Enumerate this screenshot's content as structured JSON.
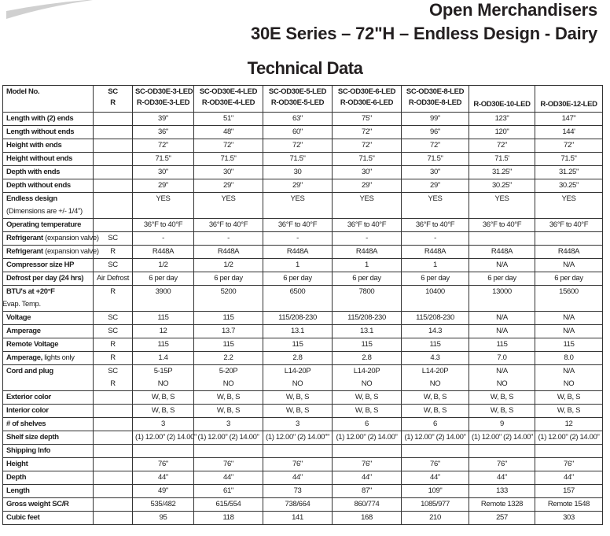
{
  "header": {
    "title": "Open Merchandisers",
    "subtitle": "30E Series – 72\"H – Endless Design - Dairy",
    "section_title": "Technical Data",
    "swoosh_color": "#d0d0d0"
  },
  "table": {
    "header": {
      "label": "Model No.",
      "sub": [
        "SC",
        "R"
      ],
      "models": [
        [
          "SC-OD30E-3-LED",
          "R-OD30E-3-LED"
        ],
        [
          "SC-OD30E-4-LED",
          "R-OD30E-4-LED"
        ],
        [
          "SC-OD30E-5-LED",
          "R-OD30E-5-LED"
        ],
        [
          "SC-OD30E-6-LED",
          "R-OD30E-6-LED"
        ],
        [
          "SC-OD30E-8-LED",
          "R-OD30E-8-LED"
        ],
        [
          "",
          "R-OD30E-10-LED"
        ],
        [
          "",
          "R-OD30E-12-LED"
        ]
      ]
    },
    "rows": [
      {
        "label": "Length with (2) ends",
        "sub": "",
        "values": [
          "39\"",
          "51\"",
          "63\"",
          "75\"",
          "99\"",
          "123\"",
          "147\""
        ]
      },
      {
        "label": "Length without ends",
        "sub": "",
        "values": [
          "36\"",
          "48\"",
          "60\"",
          "72\"",
          "96\"",
          "120\"",
          "144'"
        ]
      },
      {
        "label": "Height with ends",
        "sub": "",
        "values": [
          "72\"",
          "72\"",
          "72\"",
          "72\"",
          "72\"",
          "72\"",
          "72\""
        ]
      },
      {
        "label": "Height without ends",
        "sub": "",
        "values": [
          "71.5\"",
          "71.5\"",
          "71.5\"",
          "71.5\"",
          "71.5\"",
          "71.5'",
          "71.5\""
        ]
      },
      {
        "label": "Depth with ends",
        "sub": "",
        "values": [
          "30\"",
          "30\"",
          "30",
          "30\"",
          "30\"",
          "31.25\"",
          "31.25\""
        ]
      },
      {
        "label": "Depth without ends",
        "sub": "",
        "values": [
          "29\"",
          "29\"",
          "29\"",
          "29\"",
          "29\"",
          "30.25\"",
          "30.25\""
        ]
      },
      {
        "label": "Endless design",
        "line2": "(Dimensions are +/- 1/4\")",
        "sub": "",
        "values": [
          "YES",
          "YES",
          "YES",
          "YES",
          "YES",
          "YES",
          "YES"
        ]
      },
      {
        "label": "Operating temperature",
        "sub": "",
        "values": [
          "36°F to 40°F",
          "36°F to 40°F",
          "36°F to 40°F",
          "36°F to 40°F",
          "36°F to 40°F",
          "36°F to 40°F",
          "36°F to 40°F"
        ]
      },
      {
        "label": "Refrigerant",
        "note": "(expansion valve)",
        "sub": "SC",
        "values": [
          "-",
          "-",
          "-",
          "-",
          "-",
          "",
          ""
        ]
      },
      {
        "label": "Refrigerant",
        "note": "(expansion valve)",
        "sub": "R",
        "values": [
          "R448A",
          "R448A",
          "R448A",
          "R448A",
          "R448A",
          "R448A",
          "R448A"
        ]
      },
      {
        "label": "Compressor size HP",
        "sub": "SC",
        "values": [
          "1/2",
          "1/2",
          "1",
          "1",
          "1",
          "N/A",
          "N/A"
        ]
      },
      {
        "label": "Defrost per day (24 hrs)",
        "sub": "Air Defrost",
        "values": [
          "6 per day",
          "6 per day",
          "6 per day",
          "6 per day",
          "6 per day",
          "6 per day",
          "6 per day"
        ]
      },
      {
        "label": "BTU's at +20°F",
        "line2": "Evap. Temp.",
        "sub": "R",
        "values": [
          "3900",
          "5200",
          "6500",
          "7800",
          "10400",
          "13000",
          "15600"
        ]
      },
      {
        "label": "Voltage",
        "sub": "SC",
        "values": [
          "115",
          "115",
          "115/208-230",
          "115/208-230",
          "115/208-230",
          "N/A",
          "N/A"
        ]
      },
      {
        "label": "Amperage",
        "sub": "SC",
        "values": [
          "12",
          "13.7",
          "13.1",
          "13.1",
          "14.3",
          "N/A",
          "N/A"
        ]
      },
      {
        "label": "Remote Voltage",
        "sub": "R",
        "values": [
          "115",
          "115",
          "115",
          "115",
          "115",
          "115",
          "115"
        ]
      },
      {
        "label": "Amperage,",
        "note": " lights only",
        "sub": "R",
        "values": [
          "1.4",
          "2.2",
          "2.8",
          "2.8",
          "4.3",
          "7.0",
          "8.0"
        ]
      },
      {
        "label": "Cord and plug",
        "sub": "SC",
        "sub2": "R",
        "values": [
          "5-15P",
          "5-20P",
          "L14-20P",
          "L14-20P",
          "L14-20P",
          "N/A",
          "N/A"
        ],
        "values2": [
          "NO",
          "NO",
          "NO",
          "NO",
          "NO",
          "NO",
          "NO"
        ]
      },
      {
        "label": "Exterior color",
        "sub": "",
        "values": [
          "W, B, S",
          "W, B, S",
          "W, B, S",
          "W, B, S",
          "W, B, S",
          "W, B, S",
          "W, B, S"
        ]
      },
      {
        "label": "Interior color",
        "sub": "",
        "values": [
          "W, B, S",
          "W, B, S",
          "W, B, S",
          "W, B, S",
          "W, B, S",
          "W, B, S",
          "W, B, S"
        ]
      },
      {
        "label": "# of shelves",
        "sub": "",
        "values": [
          "3",
          "3",
          "3",
          "6",
          "6",
          "9",
          "12"
        ]
      },
      {
        "label": "Shelf size depth",
        "sub": "",
        "values": [
          "(1) 12.00\" (2) 14.00\"",
          "(1) 12.00\" (2) 14.00\"",
          "(1) 12.00\" (2) 14.00\"\"",
          "(1) 12.00\" (2) 14.00\"",
          "(1) 12.00\" (2) 14.00\"",
          "(1) 12.00\" (2) 14.00\"",
          "(1) 12.00\" (2) 14.00\""
        ]
      },
      {
        "label": "Shipping Info",
        "sub": "",
        "values": [
          "",
          "",
          "",
          "",
          "",
          "",
          ""
        ]
      },
      {
        "label": "Height",
        "sub": "",
        "values": [
          "76\"",
          "76\"",
          "76\"",
          "76\"",
          "76\"",
          "76\"",
          "76\""
        ]
      },
      {
        "label": "Depth",
        "sub": "",
        "values": [
          "44\"",
          "44\"",
          "44\"",
          "44\"",
          "44\"",
          "44\"",
          "44\""
        ]
      },
      {
        "label": "Length",
        "sub": "",
        "values": [
          "49\"",
          "61\"",
          "73",
          "87\"",
          "109\"",
          "133",
          "157"
        ]
      },
      {
        "label": "Gross weight SC/R",
        "sub": "",
        "values": [
          "535/482",
          "615/554",
          "738/664",
          "860/774",
          "1085/977",
          "Remote 1328",
          "Remote 1548"
        ]
      },
      {
        "label": "Cubic feet",
        "sub": "",
        "values": [
          "95",
          "118",
          "141",
          "168",
          "210",
          "257",
          "303"
        ]
      }
    ]
  }
}
